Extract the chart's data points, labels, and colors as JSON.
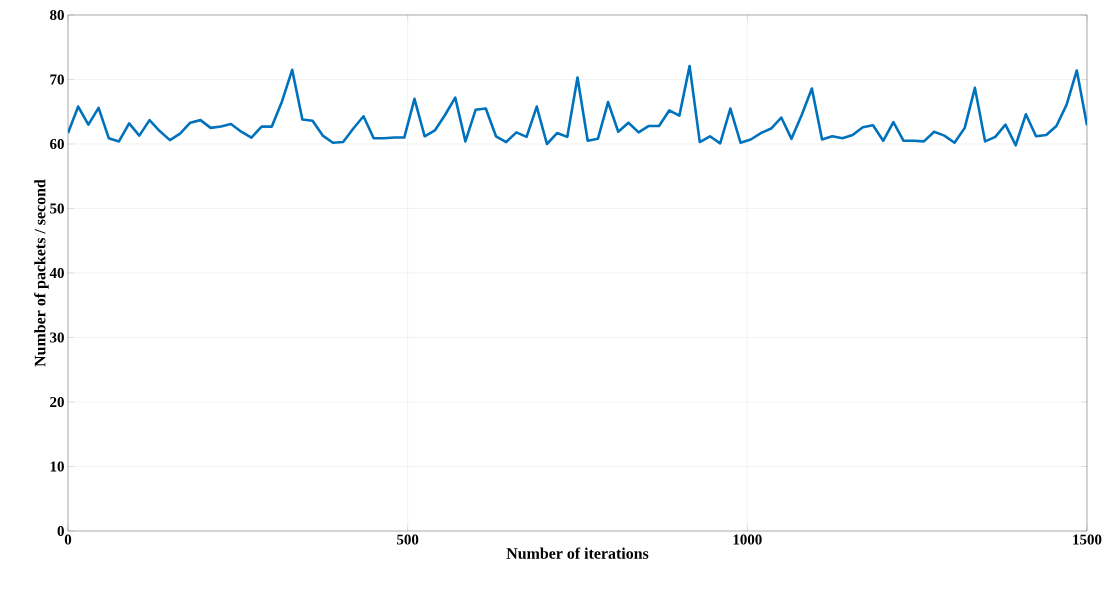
{
  "chart_data": {
    "type": "line",
    "xlabel": "Number of iterations",
    "ylabel": "Number of packets / second",
    "xlim": [
      0,
      1500
    ],
    "ylim": [
      0,
      80
    ],
    "xticks": [
      0,
      500,
      1000,
      1500
    ],
    "yticks": [
      0,
      10,
      20,
      30,
      40,
      50,
      60,
      70,
      80
    ],
    "grid": true,
    "x": [
      0,
      15,
      30,
      45,
      60,
      75,
      90,
      105,
      120,
      135,
      150,
      165,
      180,
      195,
      210,
      225,
      240,
      255,
      270,
      285,
      300,
      315,
      330,
      345,
      360,
      375,
      390,
      405,
      420,
      435,
      450,
      465,
      480,
      495,
      510,
      525,
      540,
      555,
      570,
      585,
      600,
      615,
      630,
      645,
      660,
      675,
      690,
      705,
      720,
      735,
      750,
      765,
      780,
      795,
      810,
      825,
      840,
      855,
      870,
      885,
      900,
      915,
      930,
      945,
      960,
      975,
      990,
      1005,
      1020,
      1035,
      1050,
      1065,
      1080,
      1095,
      1110,
      1125,
      1140,
      1155,
      1170,
      1185,
      1200,
      1215,
      1230,
      1245,
      1260,
      1275,
      1290,
      1305,
      1320,
      1335,
      1350,
      1365,
      1380,
      1395,
      1410,
      1425,
      1440,
      1455,
      1470,
      1485,
      1500
    ],
    "series": [
      {
        "color": "#0072bd",
        "values": [
          61.7,
          65.8,
          63,
          65.6,
          60.9,
          60.4,
          63.2,
          61.3,
          63.7,
          62,
          60.6,
          61.6,
          63.3,
          63.7,
          62.5,
          62.7,
          63.1,
          61.9,
          61,
          62.7,
          62.7,
          66.6,
          71.5,
          63.8,
          63.6,
          61.3,
          60.2,
          60.3,
          62.4,
          64.3,
          60.9,
          60.9,
          61,
          61,
          67,
          61.2,
          62.1,
          64.5,
          67.2,
          60.4,
          65.3,
          65.5,
          61.2,
          60.3,
          61.8,
          61.1,
          65.8,
          60,
          61.7,
          61.1,
          70.3,
          60.5,
          60.8,
          66.5,
          61.9,
          63.3,
          61.8,
          62.8,
          62.8,
          65.2,
          64.4,
          72.1,
          60.3,
          61.2,
          60.1,
          65.5,
          60.2,
          60.7,
          61.7,
          62.4,
          64.1,
          60.8,
          64.5,
          68.6,
          60.7,
          61.2,
          60.9,
          61.4,
          62.6,
          62.9,
          60.5,
          63.4,
          60.5,
          60.5,
          60.4,
          61.9,
          61.3,
          60.2,
          62.5,
          68.7,
          60.4,
          61.1,
          63,
          59.8,
          64.6,
          61.2,
          61.4,
          62.8,
          66.1,
          71.4,
          62.9
        ]
      }
    ]
  }
}
